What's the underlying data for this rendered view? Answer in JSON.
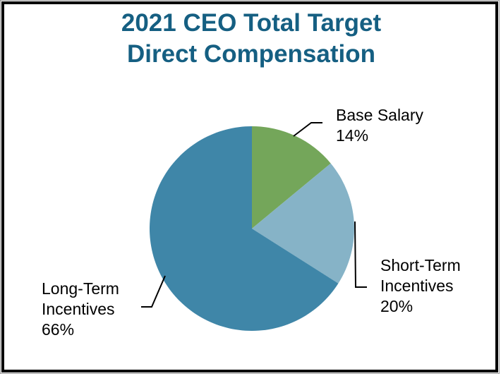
{
  "frame": {
    "background": "#ffffff",
    "border_color": "#000000",
    "outer_edge_color": "#9a9a9a"
  },
  "title": {
    "line1": "2021 CEO Total Target",
    "line2": "Direct Compensation",
    "color": "#155f82"
  },
  "chart_data": {
    "type": "pie",
    "title": "2021 CEO Total Target Direct Compensation",
    "start_angle_deg": 0,
    "direction": "clockwise",
    "legend": "none",
    "data_labels": "callouts-with-leader-lines",
    "slices": [
      {
        "label": "Base Salary",
        "value_pct": 14,
        "color": "#74a65a"
      },
      {
        "label": "Short-Term Incentives",
        "value_pct": 20,
        "color": "#86b3c7"
      },
      {
        "label": "Long-Term Incentives",
        "value_pct": 66,
        "color": "#3f86a8"
      }
    ]
  },
  "callouts": [
    {
      "lines": [
        "Base Salary",
        "14%"
      ]
    },
    {
      "lines": [
        "Short-Term",
        "Incentives",
        "20%"
      ]
    },
    {
      "lines": [
        "Long-Term",
        "Incentives",
        "66%"
      ]
    }
  ]
}
